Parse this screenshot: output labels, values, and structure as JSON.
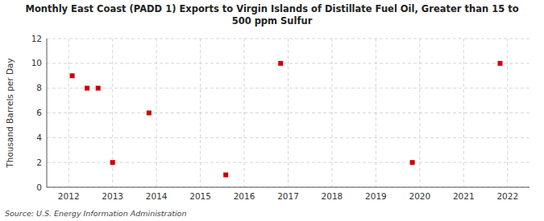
{
  "chart_data": {
    "type": "scatter",
    "title": "Monthly East Coast (PADD 1) Exports to Virgin Islands of Distillate Fuel Oil, Greater than 15 to\n500 ppm Sulfur",
    "y_label": "Thousand Barrels per Day",
    "source": "Source: U.S. Energy Information Administration",
    "x": [
      2012.08,
      2012.42,
      2012.67,
      2013.0,
      2013.83,
      2015.58,
      2016.83,
      2019.83,
      2021.83
    ],
    "values": [
      9,
      8,
      8,
      2,
      6,
      1,
      10,
      2,
      10
    ],
    "color": "#cc0000",
    "marker": "square",
    "xlim": [
      2011.5,
      2022.5
    ],
    "ylim": [
      0,
      12
    ],
    "xticks": [
      2012,
      2013,
      2014,
      2015,
      2016,
      2017,
      2018,
      2019,
      2020,
      2021,
      2022
    ],
    "yticks": [
      0,
      2,
      4,
      6,
      8,
      10,
      12
    ],
    "grid": true
  }
}
